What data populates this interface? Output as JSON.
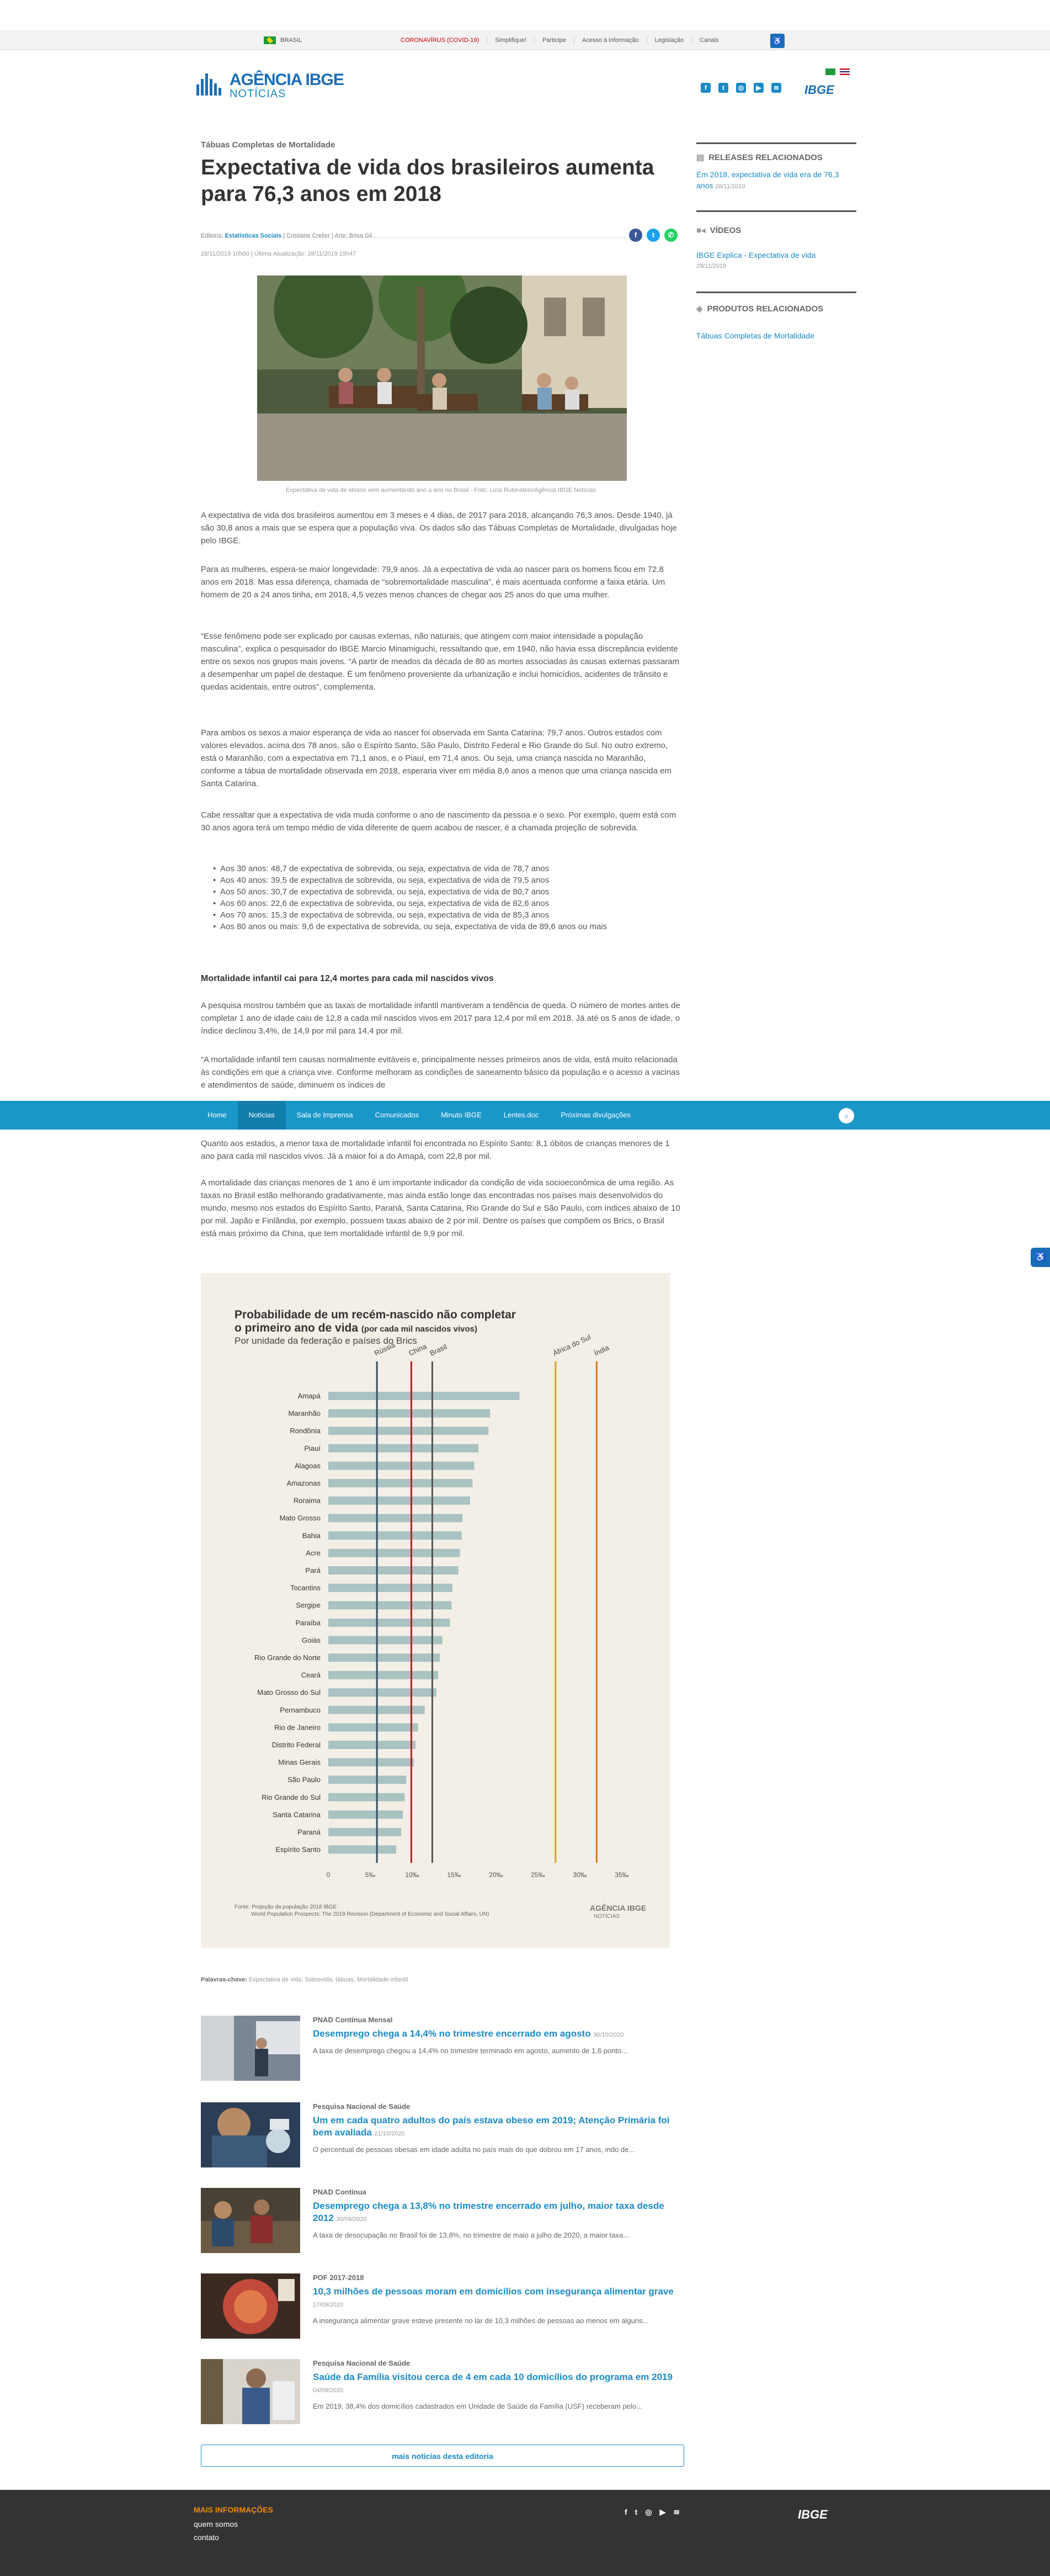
{
  "govbar": {
    "country": "BRASIL",
    "links": [
      "CORONAVÍRUS (COVID-19)",
      "Simplifique!",
      "Participe",
      "Acesso à informação",
      "Legislação",
      "Canais"
    ]
  },
  "header": {
    "logo_main": "AGÊNCIA IBGE",
    "logo_sub": "NOTÍCIAS",
    "ibge": "IBGE",
    "social": [
      "f",
      "t",
      "ig",
      "yt",
      "rss"
    ]
  },
  "article": {
    "kicker": "Tábuas Completas de Mortalidade",
    "title": "Expectativa de vida dos brasileiros aumenta para 76,3 anos em 2018",
    "editoria_label": "Editoria: ",
    "editoria": "Estatísticas Sociais",
    "authors": " | Cristiane Crelier | Arte: Brisa Gil",
    "dates": "28/11/2019 10h00 | Última Atualização: 28/11/2019 19h47",
    "caption": "Expectativa de vida de idosos vem aumentando ano a ano no Brasil - Foto: Licia Rubinstein/Agência IBGE Notícias",
    "p1": "A expectativa de vida dos brasileiros aumentou em 3 meses e 4 dias, de 2017 para 2018, alcançando 76,3 anos. Desde 1940, já são 30,8 anos a mais que se espera que a população viva. Os dados são das Tábuas Completas de Mortalidade, divulgadas hoje pelo IBGE.",
    "p2": "Para as mulheres, espera-se maior longevidade: 79,9 anos. Já a expectativa de vida ao nascer para os homens ficou em 72,8 anos em 2018. Mas essa diferença, chamada de “sobremortalidade masculina”, é mais acentuada conforme a faixa etária. Um homem de 20 a 24 anos tinha, em 2018, 4,5 vezes menos chances de chegar aos 25 anos do que uma mulher.",
    "p3": "“Esse fenômeno pode ser explicado por causas externas, não naturais, que atingem com maior intensidade a população masculina”, explica o pesquisador do IBGE Marcio Minamiguchi, ressaltando que, em 1940, não havia essa discrepância evidente entre os sexos nos grupos mais jovens. “A partir de meados da década de 80 as mortes associadas às causas externas passaram a desempenhar um papel de destaque. É um fenômeno proveniente da urbanização e inclui homicídios, acidentes de trânsito e quedas acidentais, entre outros”, complementa.",
    "p4": "Para ambos os sexos a maior esperança de vida ao nascer foi observada em Santa Catarina: 79,7 anos. Outros estados com valores elevados, acima dos 78 anos, são o Espírito Santo, São Paulo, Distrito Federal e Rio Grande do Sul. No outro extremo, está o Maranhão, com a expectativa em 71,1 anos, e o Piauí, em 71,4 anos. Ou seja, uma criança nascida no Maranhão, conforme a tábua de mortalidade observada em 2018, esperaria viver em média 8,6 anos a menos que uma criança nascida em Santa Catarina.",
    "p5": "Cabe ressaltar que a expectativa de vida muda conforme o ano de nascimento da pessoa e o sexo. Por exemplo, quem está com 30 anos agora terá um tempo médio de vida diferente de quem acabou de nascer, é a chamada projeção de sobrevida.",
    "bullets": [
      "Aos 30 anos: 48,7 de expectativa de sobrevida, ou seja, expectativa de vida de 78,7 anos",
      "Aos 40 anos: 39,5 de expectativa de sobrevida, ou seja, expectativa de vida de 79,5 anos",
      "Aos 50 anos: 30,7 de expectativa de sobrevida, ou seja, expectativa de vida de 80,7 anos",
      "Aos 60 anos: 22,6 de expectativa de sobrevida, ou seja, expectativa de vida de 82,6 anos",
      "Aos 70 anos: 15,3 de expectativa de sobrevida, ou seja, expectativa de vida de 85,3 anos",
      "Aos 80 anos ou mais: 9,6 de expectativa de sobrevida, ou seja, expectativa de vida de 89,6 anos ou mais"
    ],
    "subhead": "Mortalidade infantil cai para 12,4 mortes para cada mil nascidos vivos",
    "p6": "A pesquisa mostrou também que as taxas de mortalidade infantil mantiveram a tendência de queda. O número de mortes antes de completar 1 ano de idade caiu de 12,8 a cada mil nascidos vivos em 2017 para 12,4 por mil em 2018. Já até os 5 anos de idade, o índice declinou 3,4%, de 14,9 por mil para 14,4 por mil.",
    "p7": "“A mortalidade infantil tem causas normalmente evitáveis e, principalmente nesses primeiros anos de vida, está muito relacionada às condições em que a criança vive. Conforme melhoram as condições de saneamento básico da população e o acesso a vacinas e atendimentos de saúde, diminuem os índices de",
    "p8": "Quanto aos estados, a menor taxa de mortalidade infantil foi encontrada no Espírito Santo: 8,1 óbitos de crianças menores de 1 ano para cada mil nascidos vivos. Já a maior foi a do Amapá, com 22,8 por mil.",
    "p9": "A mortalidade das crianças menores de 1 ano é um importante indicador da condição de vida socioeconômica de uma região. As taxas no Brasil estão melhorando gradativamente, mas ainda estão longe das encontradas nos países mais desenvolvidos do mundo, mesmo nos estados do Espírito Santo, Paraná, Santa Catarina, Rio Grande do Sul e São Paulo, com índices abaixo de 10 por mil. Japão e Finlândia, por exemplo, possuem taxas abaixo de 2 por mil. Dentre os países que compõem os Brics, o Brasil está mais próximo da China, que tem mortalidade infantil de 9,9 por mil.",
    "tags_label": "Palavras-chave: ",
    "tags": "Expectativa de vida, Sobrevida, tábuas, Mortalidade infantil"
  },
  "stickynav": {
    "items": [
      "Home",
      "Notícias",
      "Sala de Imprensa",
      "Comunicados",
      "Minuto IBGE",
      "Lentes.doc",
      "Próximas divulgações"
    ]
  },
  "sidebar": {
    "releases": {
      "title": "RELEASES RELACIONADOS",
      "link": "Em 2018, expectativa de vida era de 76,3 anos",
      "date": "28/11/2019"
    },
    "videos": {
      "title": "VÍDEOS",
      "link": "IBGE Explica - Expectativa de vida",
      "date": "28/11/2019"
    },
    "produtos": {
      "title": "PRODUTOS RELACIONADOS",
      "link": "Tábuas Completas de Mortalidade"
    }
  },
  "chart_data": {
    "type": "bar",
    "title": "Probabilidade de um recém-nascido não completar",
    "title2": "o primeiro ano de vida",
    "title_note": "(por cada mil nascidos vivos)",
    "subtitle": "Por unidade da federação e países do Brics",
    "categories": [
      "Amapá",
      "Maranhão",
      "Rondônia",
      "Piauí",
      "Alagoas",
      "Amazonas",
      "Roraima",
      "Mato Grosso",
      "Bahia",
      "Acre",
      "Pará",
      "Tocantins",
      "Sergipe",
      "Paraíba",
      "Goiás",
      "Rio Grande do Norte",
      "Ceará",
      "Mato Grosso do Sul",
      "Pernambuco",
      "Rio de Janeiro",
      "Distrito Federal",
      "Minas Gerais",
      "São Paulo",
      "Rio Grande do Sul",
      "Santa Catarina",
      "Paraná",
      "Espírito Santo"
    ],
    "values": [
      22.8,
      19.3,
      19.1,
      17.9,
      17.4,
      17.2,
      16.9,
      16.0,
      15.9,
      15.7,
      15.5,
      14.8,
      14.7,
      14.5,
      13.6,
      13.3,
      13.1,
      12.9,
      11.5,
      10.7,
      10.4,
      10.2,
      9.3,
      9.1,
      8.9,
      8.7,
      8.1
    ],
    "references": [
      {
        "name": "Rússia",
        "value": 5.8,
        "color": "#334f66"
      },
      {
        "name": "China",
        "value": 9.9,
        "color": "#b22222"
      },
      {
        "name": "Brasil",
        "value": 12.4,
        "color": "#555555"
      },
      {
        "name": "África do Sul",
        "value": 27.1,
        "color": "#d6a21e"
      },
      {
        "name": "Índia",
        "value": 32.0,
        "color": "#d27a1f"
      }
    ],
    "xticks": [
      "0",
      "5‰",
      "10‰",
      "15‰",
      "20‰",
      "25‰",
      "30‰",
      "35‰"
    ],
    "xlim": [
      0,
      35
    ],
    "bar_color": "#a9c2c2",
    "source": "Fonte: Projeção da população 2018 IBGE",
    "source2": "World Population Prospects: The 2019 Revision (Department of Economic and Social Affairs, UN)",
    "logo": "AGÊNCIA IBGE",
    "logo_sub": "NOTÍCIAS"
  },
  "news": [
    {
      "cat": "PNAD Contínua Mensal",
      "headline": "Desemprego chega a 14,4% no trimestre encerrado em agosto",
      "date": "30/10/2020",
      "excerpt": "A taxa de desemprego chegou a 14,4% no trimestre terminado em agosto, aumento de 1,6 ponto..."
    },
    {
      "cat": "Pesquisa Nacional de Saúde",
      "headline": "Um em cada quatro adultos do país estava obeso em 2019; Atenção Primária foi bem avaliada",
      "date": "21/10/2020",
      "excerpt": "O percentual de pessoas obesas em idade adulta no país mais do que dobrou em 17 anos, indo de..."
    },
    {
      "cat": "PNAD Contínua",
      "headline": "Desemprego chega a 13,8% no trimestre encerrado em julho, maior taxa desde 2012",
      "date": "30/09/2020",
      "excerpt": "A taxa de desocupação no Brasil foi de 13,8%, no trimestre de maio a julho de 2020, a maior taxa..."
    },
    {
      "cat": "POF 2017-2018",
      "headline": "10,3 milhões de pessoas moram em domicílios com insegurança alimentar grave",
      "date": "17/09/2020",
      "excerpt": "A insegurança alimentar grave esteve presente no lar de 10,3 milhões de pessoas ao menos em alguns..."
    },
    {
      "cat": "Pesquisa Nacional de Saúde",
      "headline": "Saúde da Família visitou cerca de 4 em cada 10 domicílios do programa em 2019",
      "date": "04/09/2020",
      "excerpt": "Em 2019, 38,4% dos domicílios cadastrados em Unidade de Saúde da Família (USF) receberam pelo..."
    }
  ],
  "more_button": "mais notícias desta editoria",
  "footer": {
    "title": "MAIS INFORMAÇÕES",
    "links": [
      "quem somos",
      "contato"
    ],
    "logo": "IBGE"
  }
}
